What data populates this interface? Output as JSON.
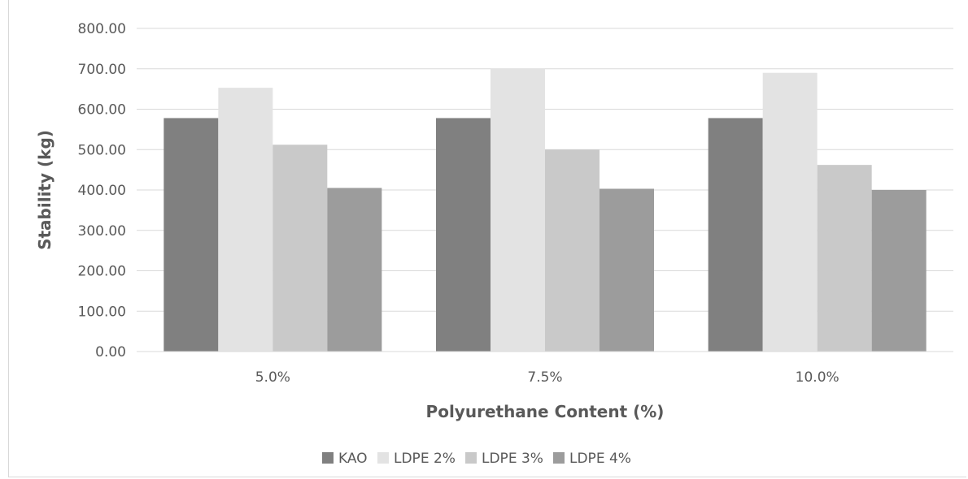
{
  "chart_data": {
    "type": "bar",
    "categories": [
      "5.0%",
      "7.5%",
      "10.0%"
    ],
    "series": [
      {
        "name": "KAO",
        "values": [
          578,
          578,
          578
        ],
        "color": "#808080"
      },
      {
        "name": "LDPE 2%",
        "values": [
          653,
          700,
          690
        ],
        "color": "#e3e3e3"
      },
      {
        "name": "LDPE 3%",
        "values": [
          512,
          500,
          462
        ],
        "color": "#c9c9c9"
      },
      {
        "name": "LDPE 4%",
        "values": [
          405,
          403,
          400
        ],
        "color": "#9c9c9c"
      }
    ],
    "xlabel": "Polyurethane Content (%)",
    "ylabel": "Stability (kg)",
    "ylim": [
      0,
      800
    ],
    "yticks": [
      "0.00",
      "100.00",
      "200.00",
      "300.00",
      "400.00",
      "500.00",
      "600.00",
      "700.00",
      "800.00"
    ],
    "grid": true,
    "legend_position": "bottom"
  }
}
